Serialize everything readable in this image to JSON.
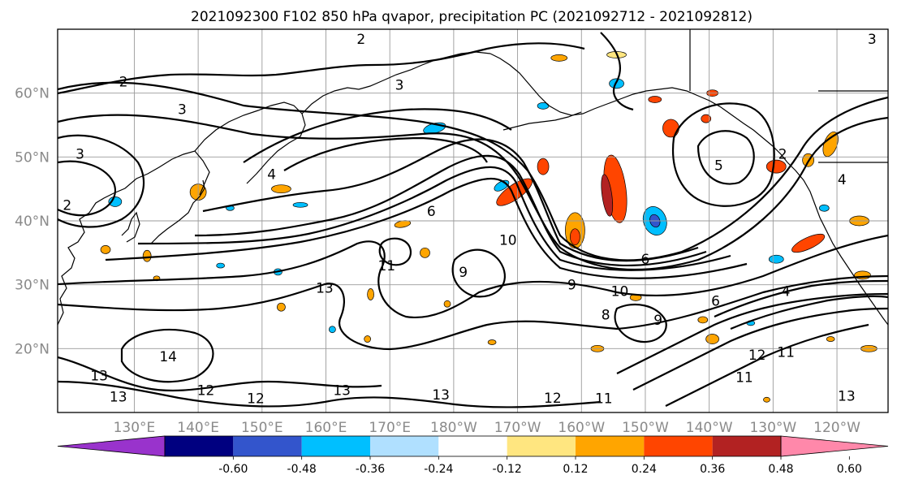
{
  "chart_data": {
    "type": "map",
    "title": "2021092300 F102 850 hPa qvapor, precipitation PC (2021092712 - 2021092812)",
    "map": {
      "lon_range": [
        118,
        248
      ],
      "lat_range": [
        10,
        70
      ],
      "lon_ticks": [
        {
          "lon": 130,
          "label": "130°E"
        },
        {
          "lon": 140,
          "label": "140°E"
        },
        {
          "lon": 150,
          "label": "150°E"
        },
        {
          "lon": 160,
          "label": "160°E"
        },
        {
          "lon": 170,
          "label": "170°E"
        },
        {
          "lon": 180,
          "label": "180°W"
        },
        {
          "lon": 190,
          "label": "170°W"
        },
        {
          "lon": 200,
          "label": "160°W"
        },
        {
          "lon": 210,
          "label": "150°W"
        },
        {
          "lon": 220,
          "label": "140°W"
        },
        {
          "lon": 230,
          "label": "130°W"
        },
        {
          "lon": 240,
          "label": "120°W"
        }
      ],
      "lat_ticks": [
        {
          "lat": 20,
          "label": "20°N"
        },
        {
          "lat": 30,
          "label": "30°N"
        },
        {
          "lat": 40,
          "label": "40°N"
        },
        {
          "lat": 50,
          "label": "50°N"
        },
        {
          "lat": 60,
          "label": "60°N"
        }
      ],
      "grid": true
    },
    "contour_labels": [
      {
        "text": "2",
        "lon": 128.3,
        "lat": 61.8
      },
      {
        "text": "3",
        "lon": 137.5,
        "lat": 57.5
      },
      {
        "text": "3",
        "lon": 121.5,
        "lat": 50.5
      },
      {
        "text": "2",
        "lon": 165.5,
        "lat": 68.5
      },
      {
        "text": "3",
        "lon": 171.5,
        "lat": 61.3
      },
      {
        "text": "2",
        "lon": 231.5,
        "lat": 50.5
      },
      {
        "text": "3",
        "lon": 245.5,
        "lat": 68.5
      },
      {
        "text": "4",
        "lon": 240.8,
        "lat": 46.5
      },
      {
        "text": "5",
        "lon": 221.5,
        "lat": 48.7
      },
      {
        "text": "4",
        "lon": 151.5,
        "lat": 47.3
      },
      {
        "text": "6",
        "lon": 176.5,
        "lat": 41.5
      },
      {
        "text": "2",
        "lon": 119.5,
        "lat": 42.5
      },
      {
        "text": "10",
        "lon": 188.5,
        "lat": 37.0
      },
      {
        "text": "11",
        "lon": 169.5,
        "lat": 33.0
      },
      {
        "text": "9",
        "lon": 181.5,
        "lat": 32.0
      },
      {
        "text": "9",
        "lon": 198.5,
        "lat": 30.0
      },
      {
        "text": "10",
        "lon": 206.0,
        "lat": 29.0
      },
      {
        "text": "6",
        "lon": 210.0,
        "lat": 34.0
      },
      {
        "text": "8",
        "lon": 203.8,
        "lat": 25.3
      },
      {
        "text": "9",
        "lon": 212.0,
        "lat": 24.5
      },
      {
        "text": "6",
        "lon": 221.0,
        "lat": 27.5
      },
      {
        "text": "4",
        "lon": 232.0,
        "lat": 29.0
      },
      {
        "text": "13",
        "lon": 159.8,
        "lat": 29.5
      },
      {
        "text": "14",
        "lon": 135.3,
        "lat": 18.8
      },
      {
        "text": "13",
        "lon": 124.5,
        "lat": 15.8
      },
      {
        "text": "13",
        "lon": 127.5,
        "lat": 12.5
      },
      {
        "text": "12",
        "lon": 141.2,
        "lat": 13.5
      },
      {
        "text": "12",
        "lon": 149.0,
        "lat": 12.2
      },
      {
        "text": "13",
        "lon": 162.5,
        "lat": 13.5
      },
      {
        "text": "13",
        "lon": 178.0,
        "lat": 12.8
      },
      {
        "text": "12",
        "lon": 195.5,
        "lat": 12.3
      },
      {
        "text": "11",
        "lon": 203.5,
        "lat": 12.2
      },
      {
        "text": "11",
        "lon": 225.5,
        "lat": 15.5
      },
      {
        "text": "12",
        "lon": 227.5,
        "lat": 19.0
      },
      {
        "text": "11",
        "lon": 232.0,
        "lat": 19.5
      },
      {
        "text": "13",
        "lon": 241.5,
        "lat": 12.6
      }
    ],
    "precip_anomaly_colorbar": {
      "ticks": [
        "-0.60",
        "-0.48",
        "-0.36",
        "-0.24",
        "-0.12",
        "0.12",
        "0.24",
        "0.36",
        "0.48",
        "0.60"
      ],
      "colors": [
        "#9933cc",
        "#000080",
        "#3355cc",
        "#00bfff",
        "#b0e0ff",
        "#ffffff",
        "#ffe680",
        "#ffa500",
        "#ff4500",
        "#b22222",
        "#ff88aa"
      ],
      "extend": "both"
    },
    "anomaly_blobs": [
      {
        "lon": 205.3,
        "lat": 45.0,
        "rx": 13,
        "ry": 42,
        "rot": -8,
        "c": 8
      },
      {
        "lon": 204.0,
        "lat": 44.0,
        "rx": 6,
        "ry": 26,
        "rot": -8,
        "c": 9
      },
      {
        "lon": 199.0,
        "lat": 38.5,
        "rx": 12,
        "ry": 22,
        "rot": 0,
        "c": 7
      },
      {
        "lon": 199.0,
        "lat": 37.5,
        "rx": 6,
        "ry": 10,
        "rot": 0,
        "c": 8
      },
      {
        "lon": 189.5,
        "lat": 44.5,
        "rx": 26,
        "ry": 9,
        "rot": -35,
        "c": 8
      },
      {
        "lon": 194.0,
        "lat": 48.5,
        "rx": 7,
        "ry": 10,
        "rot": 0,
        "c": 8
      },
      {
        "lon": 187.5,
        "lat": 45.5,
        "rx": 10,
        "ry": 5,
        "rot": -30,
        "c": 3
      },
      {
        "lon": 211.5,
        "lat": 40.0,
        "rx": 14,
        "ry": 18,
        "rot": -20,
        "c": 3
      },
      {
        "lon": 211.5,
        "lat": 40.0,
        "rx": 6,
        "ry": 8,
        "rot": -20,
        "c": 2
      },
      {
        "lon": 214.0,
        "lat": 54.5,
        "rx": 10,
        "ry": 11,
        "rot": 0,
        "c": 8
      },
      {
        "lon": 219.5,
        "lat": 56.0,
        "rx": 6,
        "ry": 5,
        "rot": 0,
        "c": 8
      },
      {
        "lon": 230.5,
        "lat": 48.5,
        "rx": 12,
        "ry": 8,
        "rot": 0,
        "c": 8
      },
      {
        "lon": 235.5,
        "lat": 49.5,
        "rx": 7,
        "ry": 8,
        "rot": 0,
        "c": 7
      },
      {
        "lon": 239.0,
        "lat": 52.0,
        "rx": 8,
        "ry": 16,
        "rot": 20,
        "c": 7
      },
      {
        "lon": 235.5,
        "lat": 36.5,
        "rx": 22,
        "ry": 7,
        "rot": -25,
        "c": 8
      },
      {
        "lon": 243.5,
        "lat": 40.0,
        "rx": 12,
        "ry": 6,
        "rot": 0,
        "c": 7
      },
      {
        "lon": 238.0,
        "lat": 42.0,
        "rx": 6,
        "ry": 4,
        "rot": 0,
        "c": 3
      },
      {
        "lon": 205.5,
        "lat": 61.5,
        "rx": 9,
        "ry": 6,
        "rot": 0,
        "c": 3
      },
      {
        "lon": 211.5,
        "lat": 59.0,
        "rx": 8,
        "ry": 4,
        "rot": 0,
        "c": 8
      },
      {
        "lon": 205.5,
        "lat": 66.0,
        "rx": 12,
        "ry": 4,
        "rot": 0,
        "c": 6
      },
      {
        "lon": 196.5,
        "lat": 65.5,
        "rx": 10,
        "ry": 4,
        "rot": 0,
        "c": 7
      },
      {
        "lon": 220.5,
        "lat": 60.0,
        "rx": 7,
        "ry": 4,
        "rot": 0,
        "c": 8
      },
      {
        "lon": 177.0,
        "lat": 54.5,
        "rx": 14,
        "ry": 6,
        "rot": -15,
        "c": 3
      },
      {
        "lon": 172.0,
        "lat": 39.5,
        "rx": 10,
        "ry": 4,
        "rot": -10,
        "c": 7
      },
      {
        "lon": 153.0,
        "lat": 45.0,
        "rx": 12,
        "ry": 5,
        "rot": 0,
        "c": 7
      },
      {
        "lon": 156.0,
        "lat": 42.5,
        "rx": 9,
        "ry": 3,
        "rot": 0,
        "c": 3
      },
      {
        "lon": 140.0,
        "lat": 44.5,
        "rx": 10,
        "ry": 10,
        "rot": 0,
        "c": 7
      },
      {
        "lon": 127.0,
        "lat": 43.0,
        "rx": 8,
        "ry": 6,
        "rot": 0,
        "c": 3
      },
      {
        "lon": 125.5,
        "lat": 35.5,
        "rx": 6,
        "ry": 5,
        "rot": 0,
        "c": 7
      },
      {
        "lon": 132.0,
        "lat": 34.5,
        "rx": 5,
        "ry": 7,
        "rot": 0,
        "c": 7
      },
      {
        "lon": 175.5,
        "lat": 35.0,
        "rx": 6,
        "ry": 6,
        "rot": 0,
        "c": 7
      },
      {
        "lon": 167.0,
        "lat": 28.5,
        "rx": 4,
        "ry": 7,
        "rot": 0,
        "c": 7
      },
      {
        "lon": 194.0,
        "lat": 58.0,
        "rx": 7,
        "ry": 4,
        "rot": 0,
        "c": 3
      },
      {
        "lon": 230.5,
        "lat": 34.0,
        "rx": 9,
        "ry": 5,
        "rot": 0,
        "c": 3
      },
      {
        "lon": 208.5,
        "lat": 28.0,
        "rx": 7,
        "ry": 4,
        "rot": 0,
        "c": 7
      },
      {
        "lon": 244.0,
        "lat": 31.5,
        "rx": 10,
        "ry": 5,
        "rot": 0,
        "c": 7
      },
      {
        "lon": 245.0,
        "lat": 20.0,
        "rx": 10,
        "ry": 4,
        "rot": 0,
        "c": 7
      },
      {
        "lon": 220.5,
        "lat": 21.5,
        "rx": 8,
        "ry": 6,
        "rot": 0,
        "c": 7
      },
      {
        "lon": 219.0,
        "lat": 24.5,
        "rx": 6,
        "ry": 4,
        "rot": 0,
        "c": 7
      },
      {
        "lon": 202.5,
        "lat": 20.0,
        "rx": 8,
        "ry": 4,
        "rot": 0,
        "c": 7
      },
      {
        "lon": 153.0,
        "lat": 26.5,
        "rx": 5,
        "ry": 5,
        "rot": 0,
        "c": 7
      },
      {
        "lon": 152.5,
        "lat": 32.0,
        "rx": 5,
        "ry": 4,
        "rot": 0,
        "c": 3
      },
      {
        "lon": 179.0,
        "lat": 27.0,
        "rx": 4,
        "ry": 4,
        "rot": 0,
        "c": 7
      },
      {
        "lon": 226.5,
        "lat": 24.0,
        "rx": 5,
        "ry": 3,
        "rot": 0,
        "c": 3
      },
      {
        "lon": 143.5,
        "lat": 33.0,
        "rx": 5,
        "ry": 3,
        "rot": 0,
        "c": 3
      },
      {
        "lon": 133.5,
        "lat": 31.0,
        "rx": 4,
        "ry": 3,
        "rot": 0,
        "c": 7
      },
      {
        "lon": 229.0,
        "lat": 12.0,
        "rx": 4,
        "ry": 3,
        "rot": 0,
        "c": 7
      },
      {
        "lon": 166.5,
        "lat": 21.5,
        "rx": 4,
        "ry": 4,
        "rot": 0,
        "c": 7
      },
      {
        "lon": 161.0,
        "lat": 23.0,
        "rx": 4,
        "ry": 4,
        "rot": 0,
        "c": 3
      },
      {
        "lon": 239.0,
        "lat": 21.5,
        "rx": 5,
        "ry": 3,
        "rot": 0,
        "c": 7
      },
      {
        "lon": 186.0,
        "lat": 21.0,
        "rx": 5,
        "ry": 3,
        "rot": 0,
        "c": 7
      },
      {
        "lon": 145.0,
        "lat": 42.0,
        "rx": 5,
        "ry": 3,
        "rot": 0,
        "c": 3
      }
    ]
  }
}
